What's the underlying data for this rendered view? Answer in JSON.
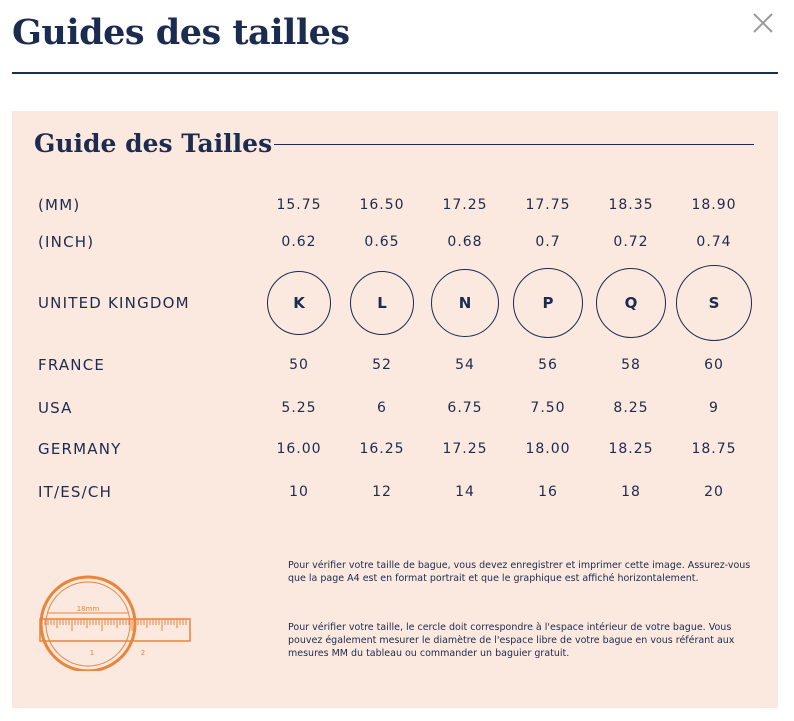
{
  "modal": {
    "title": "Guides des tailles",
    "close_icon": "close-icon"
  },
  "guide": {
    "title": "Guide des Tailles",
    "accent_color": "#1c2b50",
    "background_color": "#fbe8de",
    "ruler_color": "#e8843c",
    "rows": [
      {
        "label": "(MM)",
        "values": [
          "15.75",
          "16.50",
          "17.25",
          "17.75",
          "18.35",
          "18.90"
        ]
      },
      {
        "label": "(INCH)",
        "values": [
          "0.62",
          "0.65",
          "0.68",
          "0.7",
          "0.72",
          "0.74"
        ]
      },
      {
        "label": "UNITED KINGDOM",
        "values": [
          "K",
          "L",
          "N",
          "P",
          "Q",
          "S"
        ]
      },
      {
        "label": "FRANCE",
        "values": [
          "50",
          "52",
          "54",
          "56",
          "58",
          "60"
        ]
      },
      {
        "label": "USA",
        "values": [
          "5.25",
          "6",
          "6.75",
          "7.50",
          "8.25",
          "9"
        ]
      },
      {
        "label": "GERMANY",
        "values": [
          "16.00",
          "16.25",
          "17.25",
          "18.00",
          "18.25",
          "18.75"
        ]
      },
      {
        "label": "IT/ES/CH",
        "values": [
          "10",
          "12",
          "14",
          "16",
          "18",
          "20"
        ]
      }
    ],
    "ruler": {
      "icon": "ring-ruler-icon",
      "measure_label": "18mm",
      "tick_1": "1",
      "tick_2": "2"
    },
    "note_1": "Pour vérifier votre taille de bague, vous devez enregistrer et imprimer cette image. Assurez-vous que la page A4 est en format portrait et que le graphique est affiché horizontalement.",
    "note_2": "Pour vérifier votre taille, le cercle doit correspondre à l'espace intérieur de votre bague. Vous pouvez également mesurer le diamètre de l'espace libre de votre bague en vous référant aux mesures MM du tableau ou commander un baguier gratuit."
  }
}
